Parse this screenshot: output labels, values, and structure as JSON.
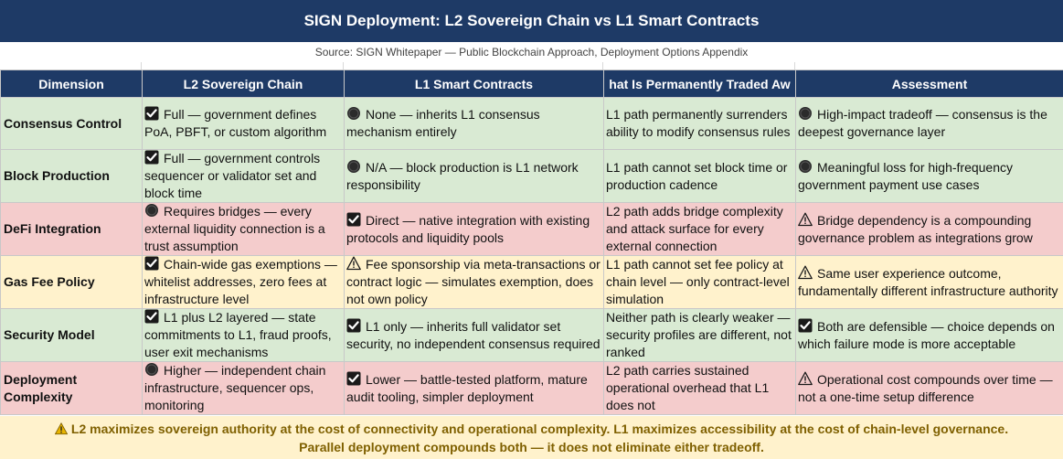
{
  "title": "SIGN Deployment: L2 Sovereign Chain vs L1 Smart Contracts",
  "source": "Source: SIGN Whitepaper — Public Blockchain Approach, Deployment Options Appendix",
  "headers": [
    "Dimension",
    "L2 Sovereign Chain",
    "L1 Smart Contracts",
    "hat Is Permanently Traded Aw",
    "Assessment"
  ],
  "icon_names": {
    "check": "check-box-icon",
    "circle": "dark-circle-icon",
    "warning": "warning-triangle-icon"
  },
  "rows": [
    {
      "dimension": "Consensus Control",
      "tone": "green",
      "l2": {
        "icon": "check",
        "text": "Full — government defines PoA, PBFT, or custom algorithm"
      },
      "l1": {
        "icon": "circle",
        "text": "None — inherits L1 consensus mechanism entirely"
      },
      "traded": {
        "icon": "",
        "text": "L1 path permanently surrenders ability to modify consensus rules"
      },
      "assessment": {
        "icon": "circle",
        "text": "High-impact tradeoff — consensus is the deepest governance layer"
      }
    },
    {
      "dimension": "Block Production",
      "tone": "green",
      "l2": {
        "icon": "check",
        "text": "Full — government controls sequencer or validator set and block time"
      },
      "l1": {
        "icon": "circle",
        "text": "N/A — block production is L1 network responsibility"
      },
      "traded": {
        "icon": "",
        "text": "L1 path cannot set block time or production cadence"
      },
      "assessment": {
        "icon": "circle",
        "text": "Meaningful loss for high-frequency government payment use cases"
      }
    },
    {
      "dimension": "DeFi Integration",
      "tone": "red",
      "l2": {
        "icon": "circle",
        "text": "Requires bridges — every external liquidity connection is a trust assumption"
      },
      "l1": {
        "icon": "check",
        "text": "Direct — native integration with existing protocols and liquidity pools"
      },
      "traded": {
        "icon": "",
        "text": "L2 path adds bridge complexity and attack surface for every external connection"
      },
      "assessment": {
        "icon": "warning",
        "text": "Bridge dependency is a compounding governance problem as integrations grow"
      }
    },
    {
      "dimension": "Gas Fee Policy",
      "tone": "yellow",
      "l2": {
        "icon": "check",
        "text": "Chain-wide gas exemptions — whitelist addresses, zero fees at infrastructure level"
      },
      "l1": {
        "icon": "warning",
        "text": "Fee sponsorship via meta-transactions or contract logic — simulates exemption, does not own policy"
      },
      "traded": {
        "icon": "",
        "text": "L1 path cannot set fee policy at chain level — only contract-level simulation"
      },
      "assessment": {
        "icon": "warning",
        "text": "Same user experience outcome, fundamentally different infrastructure authority"
      }
    },
    {
      "dimension": "Security Model",
      "tone": "green",
      "l2": {
        "icon": "check",
        "text": "L1 plus L2 layered — state commitments to L1, fraud proofs, user exit mechanisms"
      },
      "l1": {
        "icon": "check",
        "text": "L1 only — inherits full validator set security, no independent consensus required"
      },
      "traded": {
        "icon": "",
        "text": "Neither path is clearly weaker — security profiles are different, not ranked"
      },
      "assessment": {
        "icon": "check",
        "text": "Both are defensible — choice depends on which failure mode is more acceptable"
      }
    },
    {
      "dimension": "Deployment Complexity",
      "tone": "red",
      "l2": {
        "icon": "circle",
        "text": "Higher — independent chain infrastructure, sequencer ops, monitoring"
      },
      "l1": {
        "icon": "check",
        "text": "Lower — battle-tested platform, mature audit tooling, simpler deployment"
      },
      "traded": {
        "icon": "",
        "text": "L2 path carries sustained operational overhead that L1 does not"
      },
      "assessment": {
        "icon": "warning",
        "text": "Operational cost compounds over time — not a one-time setup difference"
      }
    }
  ],
  "footer": {
    "line1": "L2 maximizes sovereign authority at the cost of connectivity and operational complexity. L1 maximizes accessibility at the cost of chain-level governance.",
    "line2": "Parallel deployment compounds both — it does not eliminate either tradeoff."
  },
  "colors": {
    "header": "#1e3a66",
    "green": "#d9ead3",
    "red": "#f4cccc",
    "yellow": "#fff2cc",
    "footer_text": "#7f6000"
  }
}
